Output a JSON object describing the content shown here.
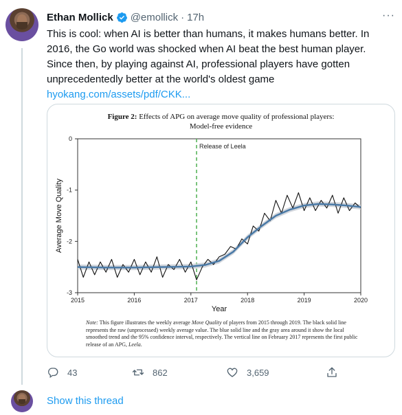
{
  "tweet": {
    "author_name": "Ethan Mollick",
    "handle": "@emollick",
    "separator": "·",
    "time": "17h",
    "more_label": "···",
    "text_lines": [
      "This is cool: when AI is better than humans, it makes humans better. In",
      "2016, the Go world was shocked when AI beat the best human player.",
      "Since then, by playing against AI, professional players have gotten",
      "unprecedentedly better at the world's oldest game"
    ],
    "link_text": "hyokang.com/assets/pdf/CKK..."
  },
  "figure": {
    "title_bold": "Figure 2:",
    "title_rest": "Effects of APG on average move quality of professional players:",
    "subtitle": "Model-free evidence",
    "note_label": "Note:",
    "note_text_1": "This figure illustrates the weekly average",
    "note_metric": "Move Quality",
    "note_text_2": "of players from 2015 through 2019. The black solid line represents the raw (unprocessed) weekly average value. The blue solid line and the gray area around it show the local smoothed trend and the 95% confidence interval, respectively. The vertical line on February 2017 represents the first public release of an APG,",
    "note_leela": "Leela",
    "note_end": "."
  },
  "chart_data": {
    "type": "line",
    "xlabel": "Year",
    "ylabel": "Average Move Quality",
    "xlim": [
      2015,
      2020
    ],
    "ylim": [
      -3,
      0
    ],
    "xticks": [
      2015,
      2016,
      2017,
      2018,
      2019,
      2020
    ],
    "yticks": [
      0,
      -1,
      -2,
      -3
    ],
    "annotation": {
      "label": "Release of Leela",
      "x": 2017.1
    },
    "series": [
      {
        "role": "raw weekly average",
        "color": "#111111",
        "x": [
          2015.0,
          2015.1,
          2015.2,
          2015.3,
          2015.4,
          2015.5,
          2015.6,
          2015.7,
          2015.8,
          2015.9,
          2016.0,
          2016.1,
          2016.2,
          2016.3,
          2016.4,
          2016.5,
          2016.6,
          2016.7,
          2016.8,
          2016.9,
          2017.0,
          2017.1,
          2017.2,
          2017.3,
          2017.4,
          2017.5,
          2017.6,
          2017.7,
          2017.8,
          2017.9,
          2018.0,
          2018.1,
          2018.2,
          2018.3,
          2018.4,
          2018.5,
          2018.6,
          2018.7,
          2018.8,
          2018.9,
          2019.0,
          2019.1,
          2019.2,
          2019.3,
          2019.4,
          2019.5,
          2019.6,
          2019.7,
          2019.8,
          2019.9,
          2020.0
        ],
        "y": [
          -2.35,
          -2.7,
          -2.4,
          -2.65,
          -2.4,
          -2.6,
          -2.35,
          -2.7,
          -2.45,
          -2.6,
          -2.35,
          -2.65,
          -2.4,
          -2.6,
          -2.3,
          -2.7,
          -2.45,
          -2.55,
          -2.35,
          -2.6,
          -2.4,
          -2.75,
          -2.5,
          -2.35,
          -2.45,
          -2.3,
          -2.25,
          -2.1,
          -2.15,
          -1.95,
          -2.05,
          -1.7,
          -1.8,
          -1.45,
          -1.6,
          -1.2,
          -1.45,
          -1.1,
          -1.35,
          -1.05,
          -1.4,
          -1.15,
          -1.4,
          -1.2,
          -1.35,
          -1.1,
          -1.45,
          -1.15,
          -1.4,
          -1.25,
          -1.35
        ]
      },
      {
        "role": "smoothed trend",
        "color": "#4a7aa7",
        "x": [
          2015.0,
          2015.5,
          2016.0,
          2016.5,
          2017.0,
          2017.25,
          2017.5,
          2017.75,
          2018.0,
          2018.25,
          2018.5,
          2018.75,
          2019.0,
          2019.25,
          2019.5,
          2019.75,
          2020.0
        ],
        "y": [
          -2.5,
          -2.51,
          -2.51,
          -2.5,
          -2.49,
          -2.46,
          -2.38,
          -2.2,
          -1.92,
          -1.7,
          -1.5,
          -1.38,
          -1.3,
          -1.27,
          -1.28,
          -1.3,
          -1.33
        ]
      }
    ]
  },
  "actions": {
    "reply_count": "43",
    "retweet_count": "862",
    "like_count": "3,659"
  },
  "show_thread_label": "Show this thread",
  "colors": {
    "accent": "#1d9bf0",
    "muted": "#536471",
    "border": "#cfd9de"
  }
}
